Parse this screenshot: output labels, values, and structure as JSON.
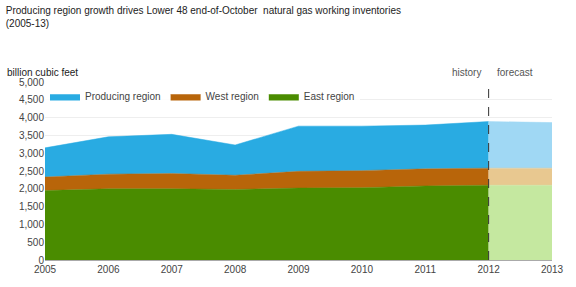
{
  "chart_data": {
    "type": "area",
    "stacked": true,
    "title": "Producing region growth drives Lower 48 end-of-October  natural gas working inventories",
    "subtitle": "(2005-13)",
    "ylabel": "billion cubic feet",
    "annotations": [
      "history",
      "forecast"
    ],
    "divider_x": 2012,
    "series": [
      {
        "name": "East region",
        "color": "#4a8c00",
        "x": [
          2005,
          2006,
          2007,
          2008,
          2009,
          2010,
          2011,
          2012
        ],
        "values": [
          1950,
          2000,
          2000,
          1980,
          2020,
          2030,
          2080,
          2100
        ]
      },
      {
        "name": "West region",
        "color": "#b8650a",
        "x": [
          2005,
          2006,
          2007,
          2008,
          2009,
          2010,
          2011,
          2012
        ],
        "values": [
          380,
          410,
          430,
          400,
          470,
          480,
          480,
          480
        ]
      },
      {
        "name": "Producing region",
        "color": "#29abe2",
        "x": [
          2005,
          2006,
          2007,
          2008,
          2009,
          2010,
          2011,
          2012
        ],
        "values": [
          820,
          1050,
          1100,
          850,
          1270,
          1250,
          1230,
          1310
        ]
      },
      {
        "color": "#c5e8a0",
        "x": [
          2012,
          2013
        ],
        "values": [
          2100,
          2100
        ]
      },
      {
        "color": "#e8c890",
        "x": [
          2012,
          2013
        ],
        "values": [
          480,
          480
        ]
      },
      {
        "color": "#a0d8f4",
        "x": [
          2012,
          2013
        ],
        "values": [
          1310,
          1280
        ]
      }
    ],
    "xlim": [
      2005,
      2013
    ],
    "xticks": [
      2005,
      2006,
      2007,
      2008,
      2009,
      2010,
      2011,
      2012,
      2013
    ],
    "ylim": [
      0,
      5000
    ],
    "yticks": [
      0,
      500,
      {
        "value": 1000,
        "label": "1,000"
      },
      {
        "value": 1500,
        "label": "1,500"
      },
      {
        "value": 2000,
        "label": "2,000"
      },
      {
        "value": 2500,
        "label": "2,500"
      },
      {
        "value": 3000,
        "label": "3,000"
      },
      {
        "value": 3500,
        "label": "3,500"
      },
      {
        "value": 4000,
        "label": "4,000"
      },
      {
        "value": 4500,
        "label": "4,500"
      },
      {
        "value": 5000,
        "label": "5,000"
      }
    ],
    "grid": "y",
    "legend": "upper left"
  }
}
